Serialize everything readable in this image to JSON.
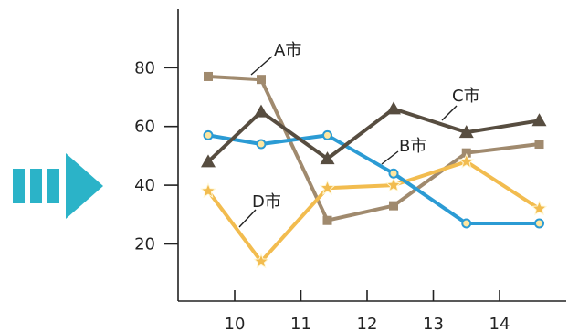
{
  "chart_data": {
    "type": "line",
    "x_ticks": [
      "10",
      "11",
      "12",
      "13",
      "14"
    ],
    "y_ticks": [
      "20",
      "40",
      "60",
      "80"
    ],
    "x": [
      9.6,
      10.4,
      11.4,
      12.4,
      13.5,
      14.6
    ],
    "ylim": [
      0,
      100
    ],
    "grid": false,
    "series": [
      {
        "name": "A市",
        "color": "#a08a6e",
        "marker": "square",
        "values": [
          77,
          76,
          28,
          33,
          51,
          54
        ]
      },
      {
        "name": "B市",
        "color": "#2b9bd4",
        "marker": "circle",
        "values": [
          57,
          54,
          57,
          44,
          27,
          27
        ]
      },
      {
        "name": "C市",
        "color": "#574d40",
        "marker": "triangle",
        "values": [
          48,
          65,
          49,
          66,
          58,
          62
        ]
      },
      {
        "name": "D市",
        "color": "#f2bc4f",
        "marker": "star",
        "values": [
          38,
          14,
          39,
          40,
          48,
          32
        ]
      }
    ]
  },
  "decoration": {
    "bars_color": "#2bb3c8",
    "arrow_color": "#2bb3c8",
    "arrow_icon": "right-arrow-icon"
  }
}
